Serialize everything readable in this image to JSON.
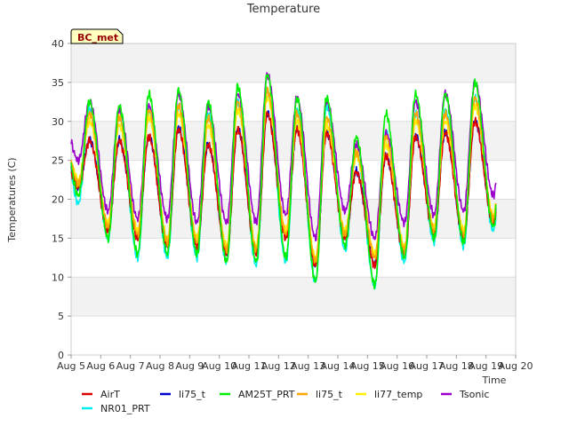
{
  "chart_data": {
    "type": "line",
    "title": "Temperature",
    "xlabel": "Time",
    "ylabel": "Temperatures (C)",
    "badge": "BC_met",
    "ylim": [
      0,
      40
    ],
    "yticks": [
      0,
      5,
      10,
      15,
      20,
      25,
      30,
      35,
      40
    ],
    "xlim": [
      "Aug 5",
      "Aug 20"
    ],
    "x_tick_labels": [
      "Aug 5",
      "Aug 6",
      "Aug 7",
      "Aug 8",
      "Aug 9",
      "Aug 10",
      "Aug 11",
      "Aug 12",
      "Aug 13",
      "Aug 14",
      "Aug 15",
      "Aug 16",
      "Aug 17",
      "Aug 18",
      "Aug 19",
      "Aug 20"
    ],
    "grid": true,
    "legend_position": "bottom",
    "days": [
      "Aug 5",
      "Aug 6",
      "Aug 7",
      "Aug 8",
      "Aug 9",
      "Aug 10",
      "Aug 11",
      "Aug 12",
      "Aug 13",
      "Aug 14",
      "Aug 15",
      "Aug 16",
      "Aug 17",
      "Aug 18",
      "Aug 19"
    ],
    "series": [
      {
        "name": "AirT",
        "color": "#dd0000",
        "daily_min": [
          21.5,
          16.0,
          15.0,
          14.0,
          14.0,
          13.0,
          13.0,
          15.0,
          11.5,
          15.0,
          11.5,
          13.0,
          15.5,
          15.0,
          17.0
        ],
        "daily_max": [
          27.5,
          27.5,
          28.0,
          29.0,
          27.0,
          29.0,
          31.0,
          29.0,
          28.5,
          23.5,
          25.5,
          28.0,
          28.5,
          30.0,
          30.0
        ]
      },
      {
        "name": "li75_t",
        "color": "#0000cc",
        "daily_min": [
          21.7,
          16.2,
          15.2,
          14.2,
          14.2,
          13.2,
          13.2,
          15.2,
          11.7,
          15.2,
          11.7,
          13.2,
          15.7,
          15.2,
          17.2
        ],
        "daily_max": [
          27.6,
          27.6,
          28.1,
          29.1,
          27.1,
          29.1,
          31.1,
          29.1,
          28.6,
          23.6,
          25.6,
          28.1,
          28.6,
          30.1,
          30.1
        ]
      },
      {
        "name": "AM25T_PRT",
        "color": "#00ee00",
        "daily_min": [
          20.5,
          15.0,
          13.0,
          13.0,
          13.0,
          12.0,
          12.0,
          12.5,
          9.5,
          14.0,
          9.0,
          12.5,
          15.0,
          14.5,
          16.5
        ],
        "daily_max": [
          32.5,
          32.0,
          33.5,
          34.0,
          32.5,
          34.5,
          36.0,
          33.0,
          33.0,
          28.0,
          31.0,
          33.5,
          33.5,
          35.0,
          35.0
        ]
      },
      {
        "name": "li75_t",
        "color": "#ffa500",
        "daily_min": [
          22.0,
          16.5,
          15.5,
          14.5,
          14.5,
          13.5,
          13.5,
          15.5,
          12.0,
          15.5,
          12.5,
          13.5,
          16.0,
          15.5,
          17.5
        ],
        "daily_max": [
          31.0,
          30.5,
          31.5,
          32.0,
          30.5,
          32.5,
          34.0,
          31.0,
          30.5,
          26.0,
          28.0,
          31.0,
          31.0,
          33.0,
          33.0
        ]
      },
      {
        "name": "li77_temp",
        "color": "#ffee00",
        "daily_min": [
          22.5,
          17.0,
          16.0,
          15.0,
          15.0,
          14.0,
          14.0,
          16.0,
          12.5,
          16.0,
          13.0,
          14.0,
          16.5,
          16.0,
          18.0
        ],
        "daily_max": [
          30.0,
          29.5,
          30.5,
          31.0,
          29.5,
          31.5,
          33.0,
          30.0,
          29.5,
          25.5,
          27.0,
          30.0,
          30.0,
          32.0,
          32.0
        ]
      },
      {
        "name": "Tsonic",
        "color": "#9900cc",
        "daily_min": [
          25.0,
          18.5,
          17.5,
          17.5,
          17.0,
          17.0,
          17.0,
          18.0,
          15.0,
          18.5,
          15.0,
          17.0,
          18.0,
          18.5,
          20.5
        ],
        "daily_max": [
          32.5,
          31.5,
          32.0,
          33.5,
          32.0,
          33.5,
          36.0,
          33.0,
          32.5,
          27.0,
          28.5,
          32.5,
          33.5,
          35.0,
          35.0
        ]
      },
      {
        "name": "NR01_PRT",
        "color": "#00eeee",
        "daily_min": [
          19.5,
          15.0,
          12.5,
          12.5,
          12.5,
          12.0,
          11.5,
          12.0,
          9.5,
          13.5,
          9.0,
          12.0,
          14.5,
          14.0,
          16.0
        ],
        "daily_max": [
          31.5,
          30.5,
          31.5,
          32.0,
          31.0,
          32.5,
          34.0,
          31.5,
          32.0,
          26.0,
          28.5,
          31.0,
          31.5,
          33.0,
          33.0
        ]
      }
    ]
  }
}
